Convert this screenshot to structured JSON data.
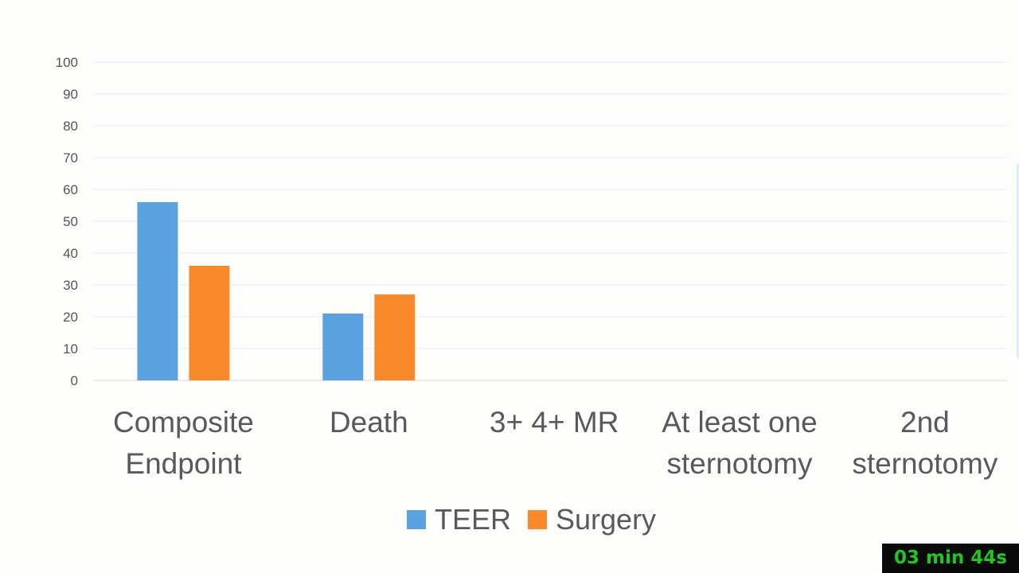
{
  "chart_data": {
    "type": "bar",
    "categories": [
      [
        "Composite",
        "Endpoint"
      ],
      [
        "Death"
      ],
      [
        "3+ 4+ MR"
      ],
      [
        "At least one",
        "sternotomy"
      ],
      [
        "2nd",
        "sternotomy"
      ]
    ],
    "series": [
      {
        "name": "TEER",
        "color": "#5ba3e0",
        "values": [
          56,
          21,
          null,
          null,
          null
        ]
      },
      {
        "name": "Surgery",
        "color": "#f98a2c",
        "values": [
          36,
          27,
          null,
          null,
          null
        ]
      }
    ],
    "ylim": [
      0,
      100
    ],
    "yticks": [
      0,
      10,
      20,
      30,
      40,
      50,
      60,
      70,
      80,
      90,
      100
    ],
    "grid": true,
    "legend_position": "bottom-center",
    "title": "",
    "xlabel": "",
    "ylabel": ""
  },
  "timer": {
    "label": "03 min 44s"
  }
}
